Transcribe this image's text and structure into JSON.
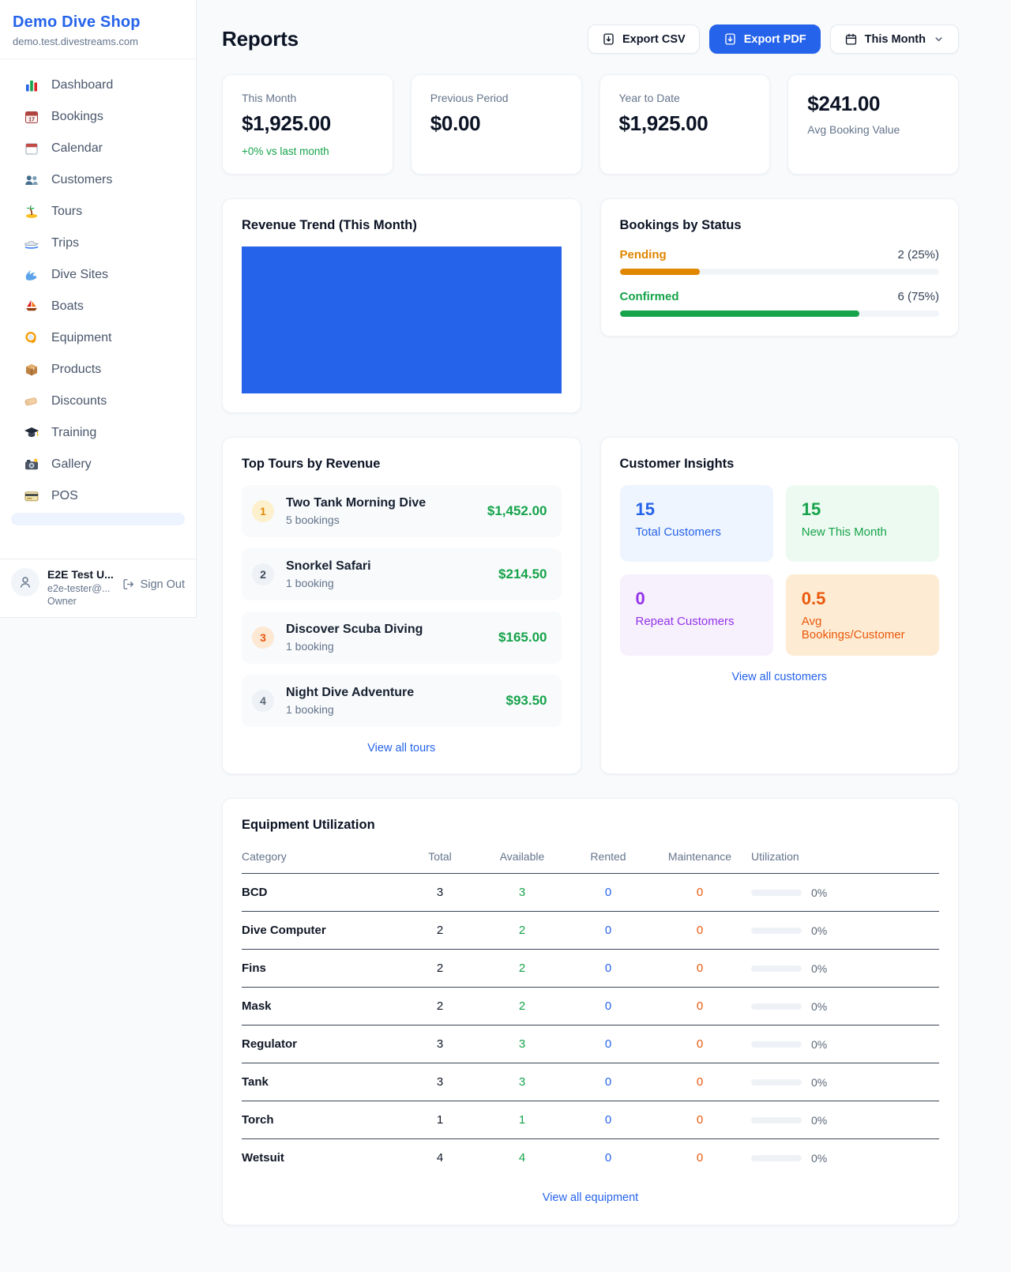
{
  "sidebar": {
    "shop_name": "Demo Dive Shop",
    "shop_domain": "demo.test.divestreams.com",
    "items": [
      {
        "icon": "bar-chart-icon",
        "label": "Dashboard"
      },
      {
        "icon": "calendar-17-icon",
        "label": "Bookings"
      },
      {
        "icon": "calendar-icon",
        "label": "Calendar"
      },
      {
        "icon": "people-icon",
        "label": "Customers"
      },
      {
        "icon": "island-icon",
        "label": "Tours"
      },
      {
        "icon": "speedboat-icon",
        "label": "Trips"
      },
      {
        "icon": "wave-icon",
        "label": "Dive Sites"
      },
      {
        "icon": "sailboat-icon",
        "label": "Boats"
      },
      {
        "icon": "dive-mask-icon",
        "label": "Equipment"
      },
      {
        "icon": "package-icon",
        "label": "Products"
      },
      {
        "icon": "tag-icon",
        "label": "Discounts"
      },
      {
        "icon": "grad-cap-icon",
        "label": "Training"
      },
      {
        "icon": "camera-icon",
        "label": "Gallery"
      },
      {
        "icon": "credit-card-icon",
        "label": "POS"
      }
    ],
    "user": {
      "name": "E2E Test U...",
      "email": "e2e-tester@...",
      "role": "Owner",
      "sign_out_label": "Sign Out"
    }
  },
  "header": {
    "title": "Reports",
    "export_csv_label": "Export CSV",
    "export_pdf_label": "Export PDF",
    "period_label": "This Month"
  },
  "stats": [
    {
      "label": "This Month",
      "value": "$1,925.00",
      "delta": "+0% vs last month"
    },
    {
      "label": "Previous Period",
      "value": "$0.00"
    },
    {
      "label": "Year to Date",
      "value": "$1,925.00"
    },
    {
      "label": "Avg Booking Value",
      "value": "$241.00"
    }
  ],
  "revenue_trend": {
    "title": "Revenue Trend (This Month)",
    "bar_color": "#2563eb"
  },
  "bookings_by_status": {
    "title": "Bookings by Status",
    "items": [
      {
        "label": "Pending",
        "count": "2 (25%)",
        "pct": 25,
        "color": "#e08600"
      },
      {
        "label": "Confirmed",
        "count": "6 (75%)",
        "pct": 75,
        "color": "#16a34a"
      }
    ]
  },
  "top_tours": {
    "title": "Top Tours by Revenue",
    "view_all_label": "View all tours",
    "items": [
      {
        "rank": "1",
        "name": "Two Tank Morning Dive",
        "bookings": "5 bookings",
        "revenue": "$1,452.00"
      },
      {
        "rank": "2",
        "name": "Snorkel Safari",
        "bookings": "1 booking",
        "revenue": "$214.50"
      },
      {
        "rank": "3",
        "name": "Discover Scuba Diving",
        "bookings": "1 booking",
        "revenue": "$165.00"
      },
      {
        "rank": "4",
        "name": "Night Dive Adventure",
        "bookings": "1 booking",
        "revenue": "$93.50"
      }
    ]
  },
  "customer_insights": {
    "title": "Customer Insights",
    "view_all_label": "View all customers",
    "tiles": [
      {
        "value": "15",
        "label": "Total Customers"
      },
      {
        "value": "15",
        "label": "New This Month"
      },
      {
        "value": "0",
        "label": "Repeat Customers"
      },
      {
        "value": "0.5",
        "label": "Avg Bookings/Customer"
      }
    ]
  },
  "equipment": {
    "title": "Equipment Utilization",
    "view_all_label": "View all equipment",
    "columns": [
      "Category",
      "Total",
      "Available",
      "Rented",
      "Maintenance",
      "Utilization"
    ],
    "rows": [
      {
        "category": "BCD",
        "total": "3",
        "available": "3",
        "rented": "0",
        "maintenance": "0",
        "utilization": "0%"
      },
      {
        "category": "Dive Computer",
        "total": "2",
        "available": "2",
        "rented": "0",
        "maintenance": "0",
        "utilization": "0%"
      },
      {
        "category": "Fins",
        "total": "2",
        "available": "2",
        "rented": "0",
        "maintenance": "0",
        "utilization": "0%"
      },
      {
        "category": "Mask",
        "total": "2",
        "available": "2",
        "rented": "0",
        "maintenance": "0",
        "utilization": "0%"
      },
      {
        "category": "Regulator",
        "total": "3",
        "available": "3",
        "rented": "0",
        "maintenance": "0",
        "utilization": "0%"
      },
      {
        "category": "Tank",
        "total": "3",
        "available": "3",
        "rented": "0",
        "maintenance": "0",
        "utilization": "0%"
      },
      {
        "category": "Torch",
        "total": "1",
        "available": "1",
        "rented": "0",
        "maintenance": "0",
        "utilization": "0%"
      },
      {
        "category": "Wetsuit",
        "total": "4",
        "available": "4",
        "rented": "0",
        "maintenance": "0",
        "utilization": "0%"
      }
    ]
  }
}
